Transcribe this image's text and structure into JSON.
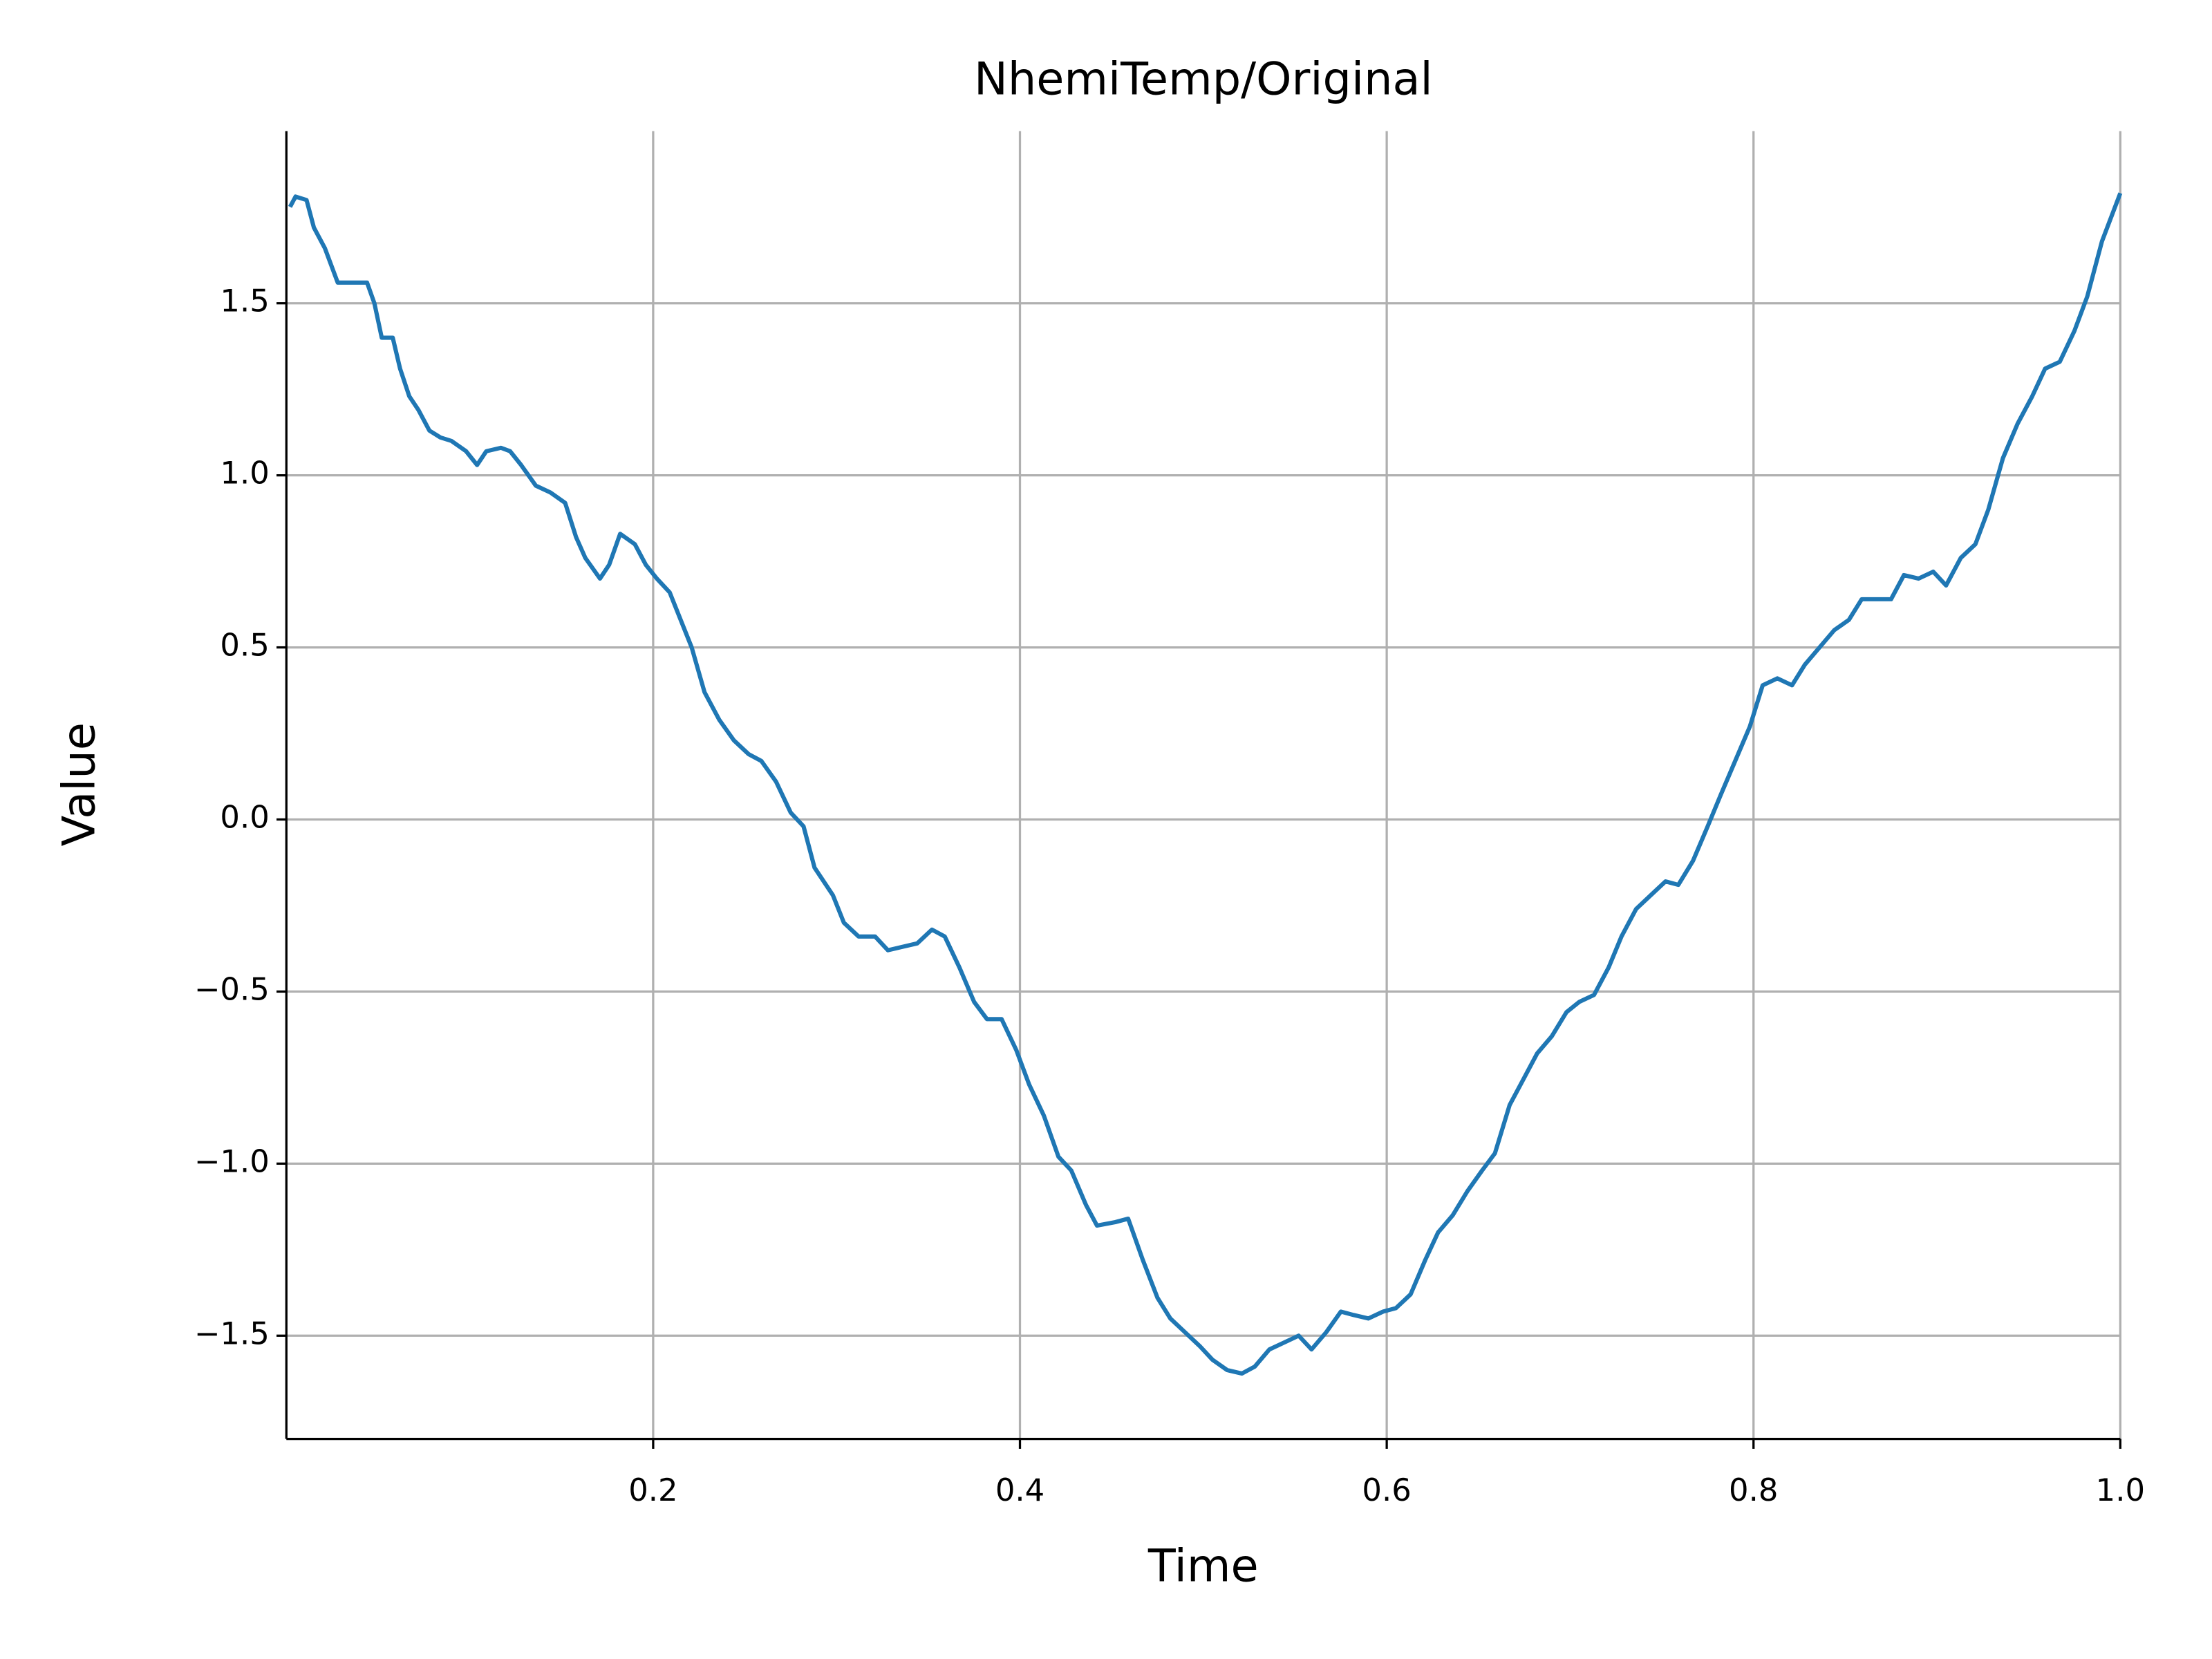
{
  "chart_data": {
    "type": "line",
    "title": "NhemiTemp/Original",
    "x_label": "Time",
    "y_label": "Value",
    "x": [
      0.002,
      0.005,
      0.011,
      0.015,
      0.021,
      0.028,
      0.036,
      0.044,
      0.048,
      0.052,
      0.058,
      0.062,
      0.067,
      0.072,
      0.078,
      0.084,
      0.09,
      0.098,
      0.104,
      0.109,
      0.117,
      0.122,
      0.128,
      0.136,
      0.144,
      0.152,
      0.158,
      0.163,
      0.171,
      0.176,
      0.182,
      0.19,
      0.196,
      0.202,
      0.209,
      0.215,
      0.221,
      0.228,
      0.236,
      0.244,
      0.252,
      0.259,
      0.267,
      0.275,
      0.282,
      0.288,
      0.298,
      0.304,
      0.312,
      0.321,
      0.328,
      0.336,
      0.344,
      0.352,
      0.359,
      0.367,
      0.375,
      0.382,
      0.39,
      0.398,
      0.405,
      0.413,
      0.421,
      0.428,
      0.436,
      0.442,
      0.452,
      0.459,
      0.467,
      0.475,
      0.482,
      0.49,
      0.498,
      0.505,
      0.513,
      0.521,
      0.528,
      0.536,
      0.544,
      0.552,
      0.559,
      0.567,
      0.575,
      0.582,
      0.59,
      0.598,
      0.605,
      0.613,
      0.621,
      0.628,
      0.636,
      0.644,
      0.652,
      0.659,
      0.667,
      0.675,
      0.682,
      0.69,
      0.698,
      0.705,
      0.713,
      0.721,
      0.728,
      0.736,
      0.744,
      0.752,
      0.759,
      0.767,
      0.775,
      0.782,
      0.79,
      0.798,
      0.805,
      0.813,
      0.821,
      0.828,
      0.836,
      0.844,
      0.852,
      0.859,
      0.867,
      0.875,
      0.882,
      0.89,
      0.898,
      0.905,
      0.913,
      0.921,
      0.928,
      0.936,
      0.944,
      0.952,
      0.959,
      0.967,
      0.975,
      0.982,
      0.99,
      1.0
    ],
    "series": [
      {
        "name": "Original",
        "color": "#1f77b4",
        "values": [
          1.78,
          1.81,
          1.8,
          1.72,
          1.66,
          1.56,
          1.56,
          1.56,
          1.5,
          1.4,
          1.4,
          1.31,
          1.23,
          1.19,
          1.13,
          1.11,
          1.1,
          1.07,
          1.03,
          1.07,
          1.08,
          1.07,
          1.03,
          0.97,
          0.95,
          0.92,
          0.82,
          0.76,
          0.7,
          0.74,
          0.83,
          0.8,
          0.74,
          0.7,
          0.66,
          0.58,
          0.5,
          0.37,
          0.29,
          0.23,
          0.19,
          0.17,
          0.11,
          0.02,
          -0.02,
          -0.14,
          -0.22,
          -0.3,
          -0.34,
          -0.34,
          -0.38,
          -0.37,
          -0.36,
          -0.32,
          -0.34,
          -0.43,
          -0.53,
          -0.58,
          -0.58,
          -0.67,
          -0.77,
          -0.86,
          -0.98,
          -1.02,
          -1.12,
          -1.18,
          -1.17,
          -1.16,
          -1.28,
          -1.39,
          -1.45,
          -1.49,
          -1.53,
          -1.57,
          -1.6,
          -1.61,
          -1.59,
          -1.54,
          -1.52,
          -1.5,
          -1.54,
          -1.49,
          -1.43,
          -1.44,
          -1.45,
          -1.43,
          -1.42,
          -1.38,
          -1.28,
          -1.2,
          -1.15,
          -1.08,
          -1.02,
          -0.97,
          -0.83,
          -0.75,
          -0.68,
          -0.63,
          -0.56,
          -0.53,
          -0.51,
          -0.43,
          -0.34,
          -0.26,
          -0.22,
          -0.18,
          -0.19,
          -0.12,
          -0.02,
          0.07,
          0.17,
          0.27,
          0.39,
          0.41,
          0.39,
          0.45,
          0.5,
          0.55,
          0.58,
          0.64,
          0.64,
          0.64,
          0.71,
          0.7,
          0.72,
          0.68,
          0.76,
          0.8,
          0.9,
          1.05,
          1.15,
          1.23,
          1.31,
          1.33,
          1.42,
          1.52,
          1.68,
          1.82
        ]
      }
    ],
    "xlim": [
      0,
      1
    ],
    "xticks": [
      0.2,
      0.4,
      0.6,
      0.8,
      {
        "value": 1,
        "label": "1.0"
      }
    ],
    "ylim": [
      -1.8,
      2.0
    ],
    "yticks": [
      {
        "value": -1.5,
        "label": "−1.5"
      },
      {
        "value": -1,
        "label": "−1.0"
      },
      {
        "value": -0.5,
        "label": "−0.5"
      },
      {
        "value": 0,
        "label": "0.0"
      },
      0.5,
      {
        "value": 1,
        "label": "1.0"
      },
      1.5
    ],
    "grid": true
  }
}
